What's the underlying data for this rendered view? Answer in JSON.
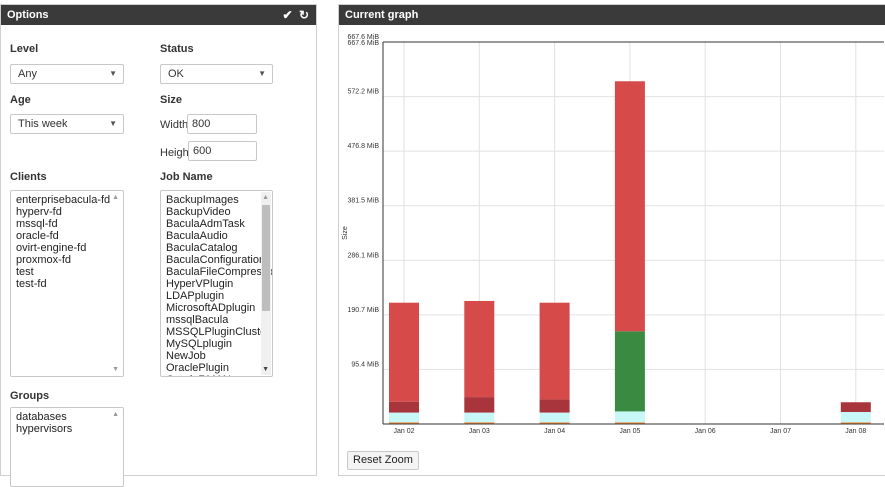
{
  "options": {
    "title": "Options",
    "icons": {
      "collapse": "chevron-down-icon",
      "refresh": "refresh-icon"
    },
    "level": {
      "label": "Level",
      "value": "Any"
    },
    "status": {
      "label": "Status",
      "value": "OK"
    },
    "age": {
      "label": "Age",
      "value": "This week"
    },
    "size": {
      "label": "Size",
      "width_label": "Width:",
      "width_value": "800",
      "height_label": "Height:",
      "height_value": "600"
    },
    "clients": {
      "label": "Clients",
      "items": [
        "enterprisebacula-fd",
        "hyperv-fd",
        "mssql-fd",
        "oracle-fd",
        "ovirt-engine-fd",
        "proxmox-fd",
        "test",
        "test-fd"
      ]
    },
    "jobname": {
      "label": "Job Name",
      "items": [
        "BackupImages",
        "BackupVideo",
        "BaculaAdmTask",
        "BaculaAudio",
        "BaculaCatalog",
        "BaculaConfigurations",
        "BaculaFileCompression",
        "HyperVPlugin",
        "LDAPplugin",
        "MicrosoftADplugin",
        "mssqlBacula",
        "MSSQLPluginCluster",
        "MySQLplugin",
        "NewJob",
        "OraclePlugin",
        "OracleRMAN"
      ]
    },
    "groups": {
      "label": "Groups",
      "items": [
        "databases",
        "hypervisors"
      ]
    }
  },
  "graph": {
    "title": "Current graph",
    "reset_zoom": "Reset Zoom",
    "colors": {
      "red": "#d64a4a",
      "darkred": "#a8343c",
      "green": "#3a8a42",
      "cyan": "#c7f7f7",
      "orange": "#f08a3c",
      "axis": "#333333",
      "grid": "#e2e2e2"
    }
  },
  "chart_data": {
    "type": "bar",
    "stacked": true,
    "ylabel": "Size",
    "xlabel": "",
    "ylim": [
      0,
      667.6
    ],
    "yticks": [
      "95.4 MiB",
      "190.7 MiB",
      "286.1 MiB",
      "381.5 MiB",
      "476.8 MiB",
      "572.2 MiB",
      "667.6 MiB"
    ],
    "ytick_values": [
      95.4,
      190.7,
      286.1,
      381.5,
      476.8,
      572.2,
      667.6
    ],
    "categories": [
      "Jan 02",
      "Jan 03",
      "Jan 04",
      "Jan 05",
      "Jan 06",
      "Jan 07",
      "Jan 08"
    ],
    "series": [
      {
        "color": "#f08a3c",
        "values": [
          3,
          3,
          3,
          3,
          0,
          0,
          3
        ]
      },
      {
        "color": "#c7f7f7",
        "values": [
          17,
          17,
          17,
          19,
          0,
          0,
          18
        ]
      },
      {
        "color": "#a8343c",
        "values": [
          19,
          27,
          23,
          0,
          0,
          0,
          17
        ]
      },
      {
        "color": "#3a8a42",
        "values": [
          0,
          0,
          0,
          140,
          0,
          0,
          0
        ]
      },
      {
        "color": "#d64a4a",
        "values": [
          173,
          168,
          169,
          437,
          0,
          0,
          0
        ]
      }
    ],
    "grid": true,
    "legend": "none"
  }
}
